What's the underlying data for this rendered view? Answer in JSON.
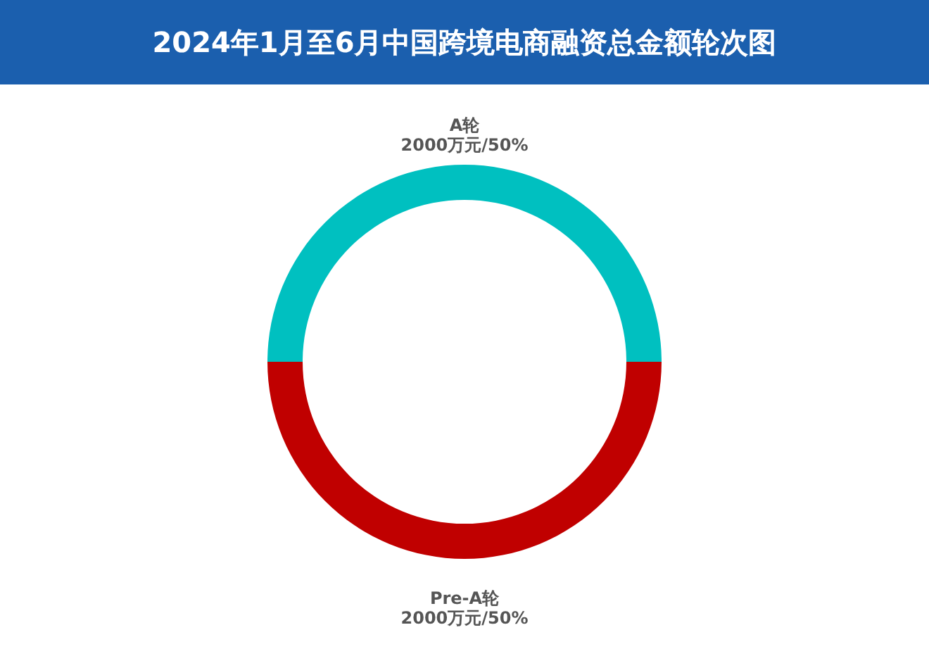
{
  "chart_data": {
    "type": "donut",
    "title": "2024年1月至6月中国跨境电商融资总金额轮次图",
    "categories": [
      "A轮",
      "Pre-A轮"
    ],
    "values": [
      2000,
      2000
    ],
    "colors": [
      "#00c0c0",
      "#c00000"
    ],
    "value_labels": [
      "2000万元/50%",
      "2000万元/50%"
    ]
  }
}
